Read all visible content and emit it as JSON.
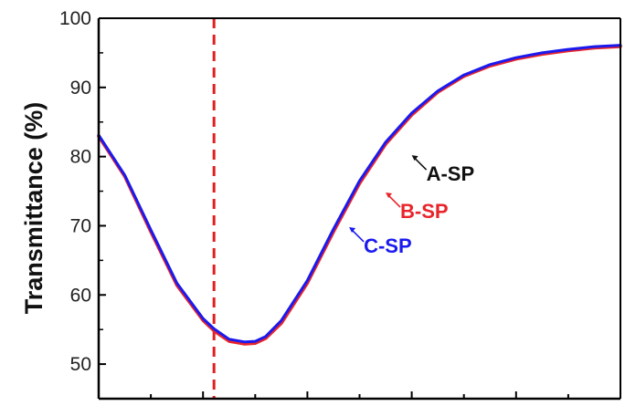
{
  "chart_data": {
    "type": "line",
    "ylabel": "Transmittance (%)",
    "xlabel": "",
    "ylim": [
      45,
      100
    ],
    "xlim": [
      0,
      100
    ],
    "y_ticks": [
      50,
      60,
      70,
      80,
      90,
      100
    ],
    "x_tick_count": 10,
    "grid": false,
    "reference_line": {
      "x": 22.1,
      "style": "dashed",
      "color": "#e02020"
    },
    "series": [
      {
        "name": "A-SP",
        "color": "#111111",
        "x": [
          0,
          5,
          10,
          15,
          20,
          22.1,
          25,
          28,
          30,
          32,
          35,
          40,
          45,
          50,
          55,
          60,
          65,
          70,
          75,
          80,
          85,
          90,
          95,
          100
        ],
        "y": [
          83,
          77.2,
          69.3,
          61.6,
          56.5,
          55,
          53.5,
          53.1,
          53.2,
          53.9,
          56.2,
          62,
          69.4,
          76.4,
          82,
          86.2,
          89.4,
          91.7,
          93.2,
          94.2,
          94.9,
          95.4,
          95.8,
          96
        ]
      },
      {
        "name": "B-SP",
        "color": "#e8242a",
        "x": [
          0,
          5,
          10,
          15,
          20,
          22.1,
          25,
          28,
          30,
          32,
          35,
          40,
          45,
          50,
          55,
          60,
          65,
          70,
          75,
          80,
          85,
          90,
          95,
          100
        ],
        "y": [
          82.9,
          77.1,
          69.1,
          61.4,
          56.3,
          54.8,
          53.3,
          52.9,
          53,
          53.7,
          55.9,
          61.7,
          69.1,
          76.1,
          81.8,
          86,
          89.3,
          91.6,
          93.1,
          94.1,
          94.8,
          95.3,
          95.7,
          95.9
        ]
      },
      {
        "name": "C-SP",
        "color": "#1a1aef",
        "x": [
          0,
          5,
          10,
          15,
          20,
          22.1,
          25,
          28,
          30,
          32,
          35,
          40,
          45,
          50,
          55,
          60,
          65,
          70,
          75,
          80,
          85,
          90,
          95,
          100
        ],
        "y": [
          83.1,
          77.3,
          69.4,
          61.7,
          56.6,
          55.1,
          53.6,
          53.2,
          53.3,
          54,
          56.3,
          62.1,
          69.5,
          76.5,
          82.1,
          86.3,
          89.5,
          91.8,
          93.3,
          94.3,
          95,
          95.5,
          95.9,
          96.1
        ]
      }
    ],
    "annotations": [
      {
        "text": "A-SP",
        "series": "A-SP",
        "point": [
          60,
          80.2
        ],
        "color": "#111111"
      },
      {
        "text": "B-SP",
        "series": "B-SP",
        "point": [
          55,
          74.8
        ],
        "color": "#e8242a"
      },
      {
        "text": "C-SP",
        "series": "C-SP",
        "point": [
          48,
          69.8
        ],
        "color": "#1a1aef"
      }
    ]
  }
}
